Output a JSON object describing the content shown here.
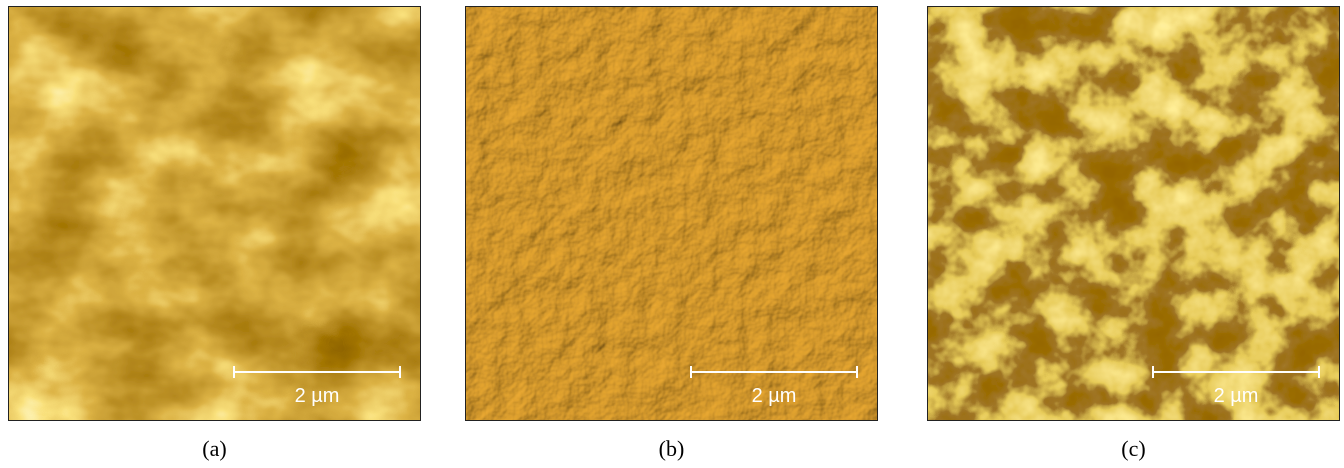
{
  "panels": [
    {
      "label": "(a)",
      "scale_bar": "2 µm"
    },
    {
      "label": "(b)",
      "scale_bar": "2 µm"
    },
    {
      "label": "(c)",
      "scale_bar": "2 µm"
    }
  ]
}
